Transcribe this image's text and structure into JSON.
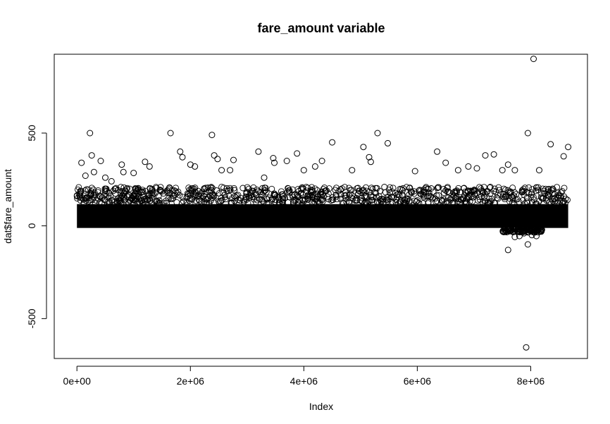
{
  "chart_data": {
    "type": "scatter",
    "title": "fare_amount variable",
    "xlabel": "Index",
    "ylabel": "dat$fare_amount",
    "xlim": [
      -400000,
      9000000
    ],
    "ylim": [
      -715,
      925
    ],
    "x_ticks": [
      0,
      2000000,
      4000000,
      6000000,
      8000000
    ],
    "x_tick_labels": [
      "0e+00",
      "2e+06",
      "4e+06",
      "6e+06",
      "8e+06"
    ],
    "y_ticks": [
      -500,
      0,
      500
    ],
    "y_tick_labels": [
      "-500",
      "0",
      "500"
    ],
    "grid": false,
    "legend": "none",
    "n_points_approx": 8660000,
    "dense_band": {
      "x_range": [
        0,
        8660000
      ],
      "y_range": [
        0,
        140
      ]
    },
    "points": [
      {
        "x": 80000,
        "y": 340
      },
      {
        "x": 150000,
        "y": 270
      },
      {
        "x": 230000,
        "y": 500
      },
      {
        "x": 260000,
        "y": 380
      },
      {
        "x": 300000,
        "y": 290
      },
      {
        "x": 420000,
        "y": 350
      },
      {
        "x": 500000,
        "y": 260
      },
      {
        "x": 610000,
        "y": 240
      },
      {
        "x": 790000,
        "y": 330
      },
      {
        "x": 820000,
        "y": 290
      },
      {
        "x": 1000000,
        "y": 285
      },
      {
        "x": 1200000,
        "y": 345
      },
      {
        "x": 1280000,
        "y": 320
      },
      {
        "x": 1650000,
        "y": 500
      },
      {
        "x": 1820000,
        "y": 400
      },
      {
        "x": 1860000,
        "y": 370
      },
      {
        "x": 2000000,
        "y": 330
      },
      {
        "x": 2080000,
        "y": 320
      },
      {
        "x": 2380000,
        "y": 490
      },
      {
        "x": 2420000,
        "y": 380
      },
      {
        "x": 2480000,
        "y": 360
      },
      {
        "x": 2550000,
        "y": 300
      },
      {
        "x": 2700000,
        "y": 300
      },
      {
        "x": 2760000,
        "y": 355
      },
      {
        "x": 3200000,
        "y": 400
      },
      {
        "x": 3300000,
        "y": 260
      },
      {
        "x": 3460000,
        "y": 365
      },
      {
        "x": 3480000,
        "y": 340
      },
      {
        "x": 3700000,
        "y": 350
      },
      {
        "x": 3880000,
        "y": 390
      },
      {
        "x": 4000000,
        "y": 300
      },
      {
        "x": 4200000,
        "y": 320
      },
      {
        "x": 4320000,
        "y": 350
      },
      {
        "x": 4500000,
        "y": 450
      },
      {
        "x": 4850000,
        "y": 300
      },
      {
        "x": 5050000,
        "y": 425
      },
      {
        "x": 5150000,
        "y": 370
      },
      {
        "x": 5180000,
        "y": 345
      },
      {
        "x": 5300000,
        "y": 500
      },
      {
        "x": 5480000,
        "y": 445
      },
      {
        "x": 5960000,
        "y": 295
      },
      {
        "x": 6350000,
        "y": 400
      },
      {
        "x": 6500000,
        "y": 340
      },
      {
        "x": 6720000,
        "y": 300
      },
      {
        "x": 6900000,
        "y": 320
      },
      {
        "x": 7050000,
        "y": 310
      },
      {
        "x": 7200000,
        "y": 380
      },
      {
        "x": 7350000,
        "y": 385
      },
      {
        "x": 7500000,
        "y": 300
      },
      {
        "x": 7600000,
        "y": 330
      },
      {
        "x": 7720000,
        "y": 300
      },
      {
        "x": 7950000,
        "y": 500
      },
      {
        "x": 8050000,
        "y": 900
      },
      {
        "x": 8150000,
        "y": 300
      },
      {
        "x": 8350000,
        "y": 440
      },
      {
        "x": 8580000,
        "y": 375
      },
      {
        "x": 8660000,
        "y": 425
      },
      {
        "x": 7600000,
        "y": -130
      },
      {
        "x": 7720000,
        "y": -60
      },
      {
        "x": 7800000,
        "y": -55
      },
      {
        "x": 7880000,
        "y": -40
      },
      {
        "x": 7950000,
        "y": -100
      },
      {
        "x": 8020000,
        "y": -50
      },
      {
        "x": 8100000,
        "y": -55
      },
      {
        "x": 7920000,
        "y": -655
      }
    ]
  }
}
